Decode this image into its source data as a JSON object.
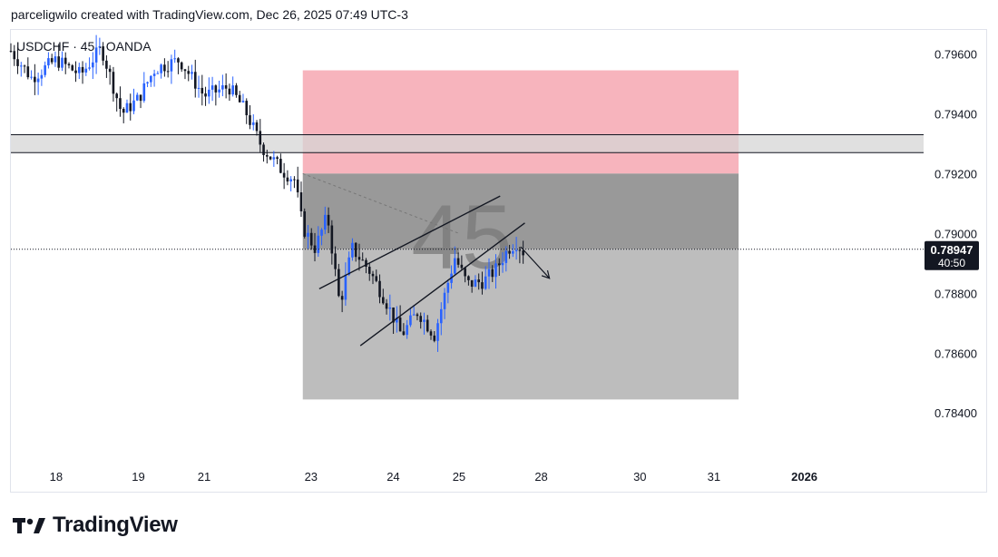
{
  "header": {
    "credit": "parceligwilo created with TradingView.com, Dec 26, 2025 07:49 UTC-3"
  },
  "brand": {
    "name": "TradingView",
    "logo_icon": "tradingview-logo-icon"
  },
  "chart_data": {
    "type": "candlestick",
    "symbol_label": "USDCHF · 45 · OANDA",
    "watermark": "45",
    "ylim": [
      0.7824,
      0.7968
    ],
    "y_ticks": [
      "0.79600",
      "0.79400",
      "0.79200",
      "0.79000",
      "0.78800",
      "0.78600",
      "0.78400"
    ],
    "x_ticks": [
      {
        "label": "18",
        "pos": 0.0
      },
      {
        "label": "19",
        "pos": 1.0
      },
      {
        "label": "21",
        "pos": 1.8
      },
      {
        "label": "23",
        "pos": 3.1
      },
      {
        "label": "24",
        "pos": 4.1
      },
      {
        "label": "25",
        "pos": 4.9
      },
      {
        "label": "28",
        "pos": 5.9
      },
      {
        "label": "30",
        "pos": 7.1
      },
      {
        "label": "31",
        "pos": 8.0
      },
      {
        "label": "2026",
        "pos": 9.1
      }
    ],
    "x_range": [
      -0.55,
      10.55
    ],
    "last_price": {
      "value": "0.78947",
      "countdown": "40:50"
    },
    "colors": {
      "up": "#2962ff",
      "down": "#131722",
      "stop_zone": "#f7b4bd",
      "target_zone": "#bdbdbd",
      "entry_zone": "#999999",
      "resistance_band": "#d6d6d6"
    },
    "price_path": [
      [
        -0.55,
        0.7961
      ],
      [
        -0.3,
        0.7952
      ],
      [
        0.0,
        0.7958
      ],
      [
        0.3,
        0.7953
      ],
      [
        0.55,
        0.7962
      ],
      [
        0.8,
        0.794
      ],
      [
        1.0,
        0.7945
      ],
      [
        1.2,
        0.7955
      ],
      [
        1.5,
        0.7958
      ],
      [
        1.8,
        0.7946
      ],
      [
        2.1,
        0.7949
      ],
      [
        2.3,
        0.7941
      ],
      [
        2.5,
        0.7929
      ],
      [
        2.75,
        0.7921
      ],
      [
        2.9,
        0.7918
      ],
      [
        3.0,
        0.7902
      ],
      [
        3.15,
        0.7895
      ],
      [
        3.3,
        0.7906
      ],
      [
        3.45,
        0.7876
      ],
      [
        3.6,
        0.7895
      ],
      [
        3.8,
        0.7888
      ],
      [
        4.0,
        0.7878
      ],
      [
        4.2,
        0.7866
      ],
      [
        4.4,
        0.7874
      ],
      [
        4.6,
        0.7866
      ],
      [
        4.75,
        0.7882
      ],
      [
        4.85,
        0.7892
      ],
      [
        5.0,
        0.7883
      ],
      [
        5.2,
        0.7884
      ],
      [
        5.35,
        0.7888
      ],
      [
        5.5,
        0.7895
      ],
      [
        5.6,
        0.7897
      ],
      [
        5.68,
        0.7894
      ]
    ],
    "annotations": {
      "resistance_band": [
        0.7927,
        0.7933
      ],
      "position": {
        "x_start": 3.0,
        "x_end": 8.3,
        "stop": 0.79545,
        "entry": 0.792,
        "current": 0.78947,
        "target": 0.78445
      },
      "channel_lower": [
        [
          3.7,
          0.78625
        ],
        [
          5.7,
          0.79035
        ]
      ],
      "channel_upper": [
        [
          3.2,
          0.78815
        ],
        [
          5.4,
          0.79125
        ]
      ],
      "dashed_line": [
        [
          3.0,
          0.792
        ],
        [
          4.9,
          0.79
        ]
      ],
      "arrow": [
        [
          5.65,
          0.78955
        ],
        [
          6.0,
          0.7885
        ]
      ]
    }
  }
}
